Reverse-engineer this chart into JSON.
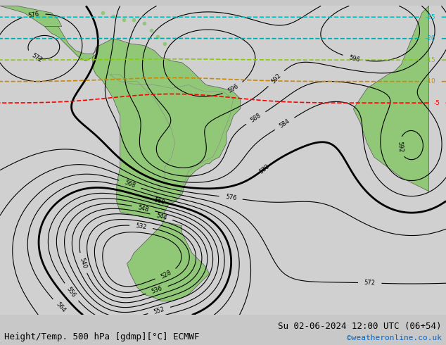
{
  "title_left": "Height/Temp. 500 hPa [gdmp][°C] ECMWF",
  "title_right": "Su 02-06-2024 12:00 UTC (06+54)",
  "credit": "©weatheronline.co.uk",
  "background_color": "#d0d0d0",
  "land_color": "#90c878",
  "ocean_color": "#e8e8e8",
  "title_font_size": 9,
  "credit_color": "#0066cc",
  "fig_width": 6.34,
  "fig_height": 4.9,
  "dpi": 100
}
